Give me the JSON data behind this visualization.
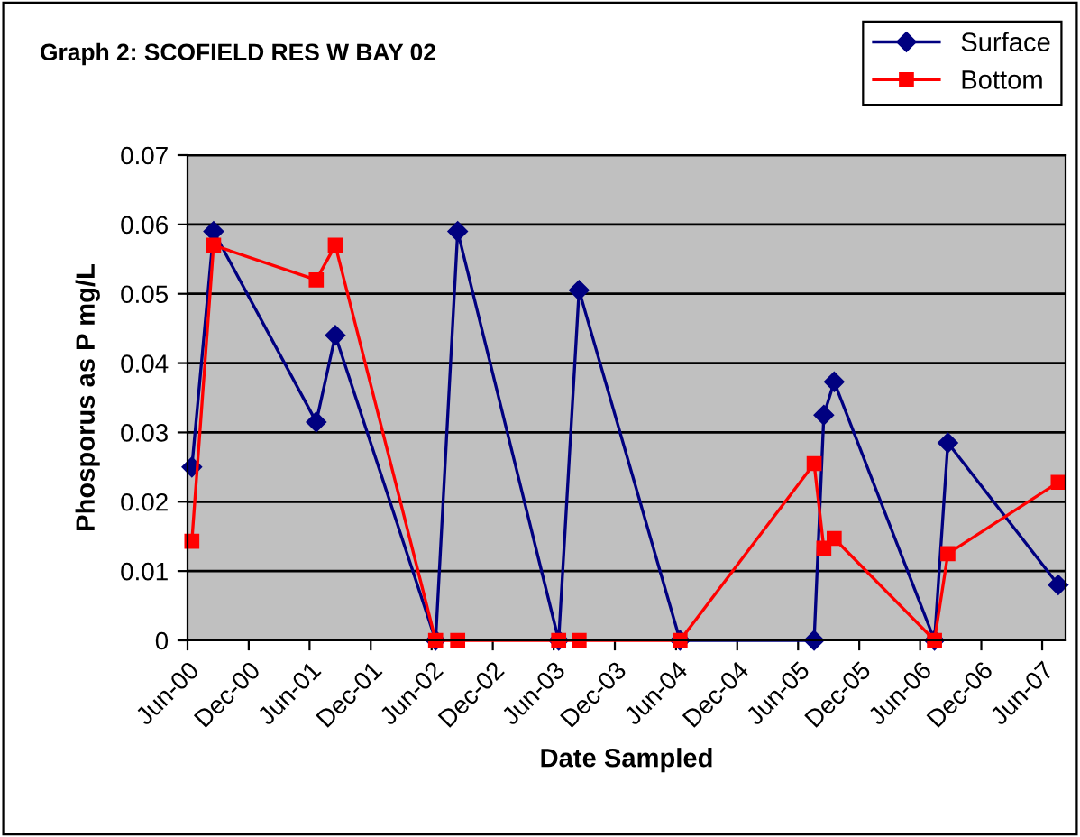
{
  "chart_data": {
    "type": "line",
    "title": "Graph 2: SCOFIELD RES W BAY 02",
    "xlabel": "Date Sampled",
    "ylabel": "Phosporus as P mg/L",
    "x": [
      "2000-06-14",
      "2000-08-18",
      "2001-06-21",
      "2001-08-17",
      "2002-06-13",
      "2002-08-18",
      "2003-06-16",
      "2003-08-16",
      "2004-06-13",
      "2005-07-19",
      "2005-08-17",
      "2005-09-17",
      "2006-07-14",
      "2006-08-23",
      "2007-07-19"
    ],
    "series": [
      {
        "name": "Surface",
        "color": "#000080",
        "marker": "diamond",
        "values": [
          0.025,
          0.059,
          0.0315,
          0.044,
          0,
          0.059,
          0,
          0.0505,
          0,
          0,
          0.0325,
          0.0373,
          0,
          0.0285,
          0.008
        ]
      },
      {
        "name": "Bottom",
        "color": "#ff0000",
        "marker": "square",
        "values": [
          0.0143,
          0.057,
          0.052,
          0.057,
          0,
          0,
          0,
          0,
          0,
          0.0255,
          0.0133,
          0.0147,
          0,
          0.0125,
          0.0228
        ]
      }
    ],
    "xlim": [
      "2000-06-01",
      "2007-08-10"
    ],
    "xticks": [
      {
        "value": "2000-06-01",
        "label": "Jun-00"
      },
      {
        "value": "2000-12-01",
        "label": "Dec-00"
      },
      {
        "value": "2001-06-01",
        "label": "Jun-01"
      },
      {
        "value": "2001-12-01",
        "label": "Dec-01"
      },
      {
        "value": "2002-06-01",
        "label": "Jun-02"
      },
      {
        "value": "2002-12-01",
        "label": "Dec-02"
      },
      {
        "value": "2003-06-01",
        "label": "Jun-03"
      },
      {
        "value": "2003-12-01",
        "label": "Dec-03"
      },
      {
        "value": "2004-06-01",
        "label": "Jun-04"
      },
      {
        "value": "2004-12-01",
        "label": "Dec-04"
      },
      {
        "value": "2005-06-01",
        "label": "Jun-05"
      },
      {
        "value": "2005-12-01",
        "label": "Dec-05"
      },
      {
        "value": "2006-06-01",
        "label": "Jun-06"
      },
      {
        "value": "2006-12-01",
        "label": "Dec-06"
      },
      {
        "value": "2007-06-01",
        "label": "Jun-07"
      }
    ],
    "ylim": [
      0,
      0.07
    ],
    "yticks": [
      0,
      0.01,
      0.02,
      0.03,
      0.04,
      0.05,
      0.06,
      0.07
    ],
    "grid": "y",
    "legend": "top right",
    "line_style": "solid"
  }
}
